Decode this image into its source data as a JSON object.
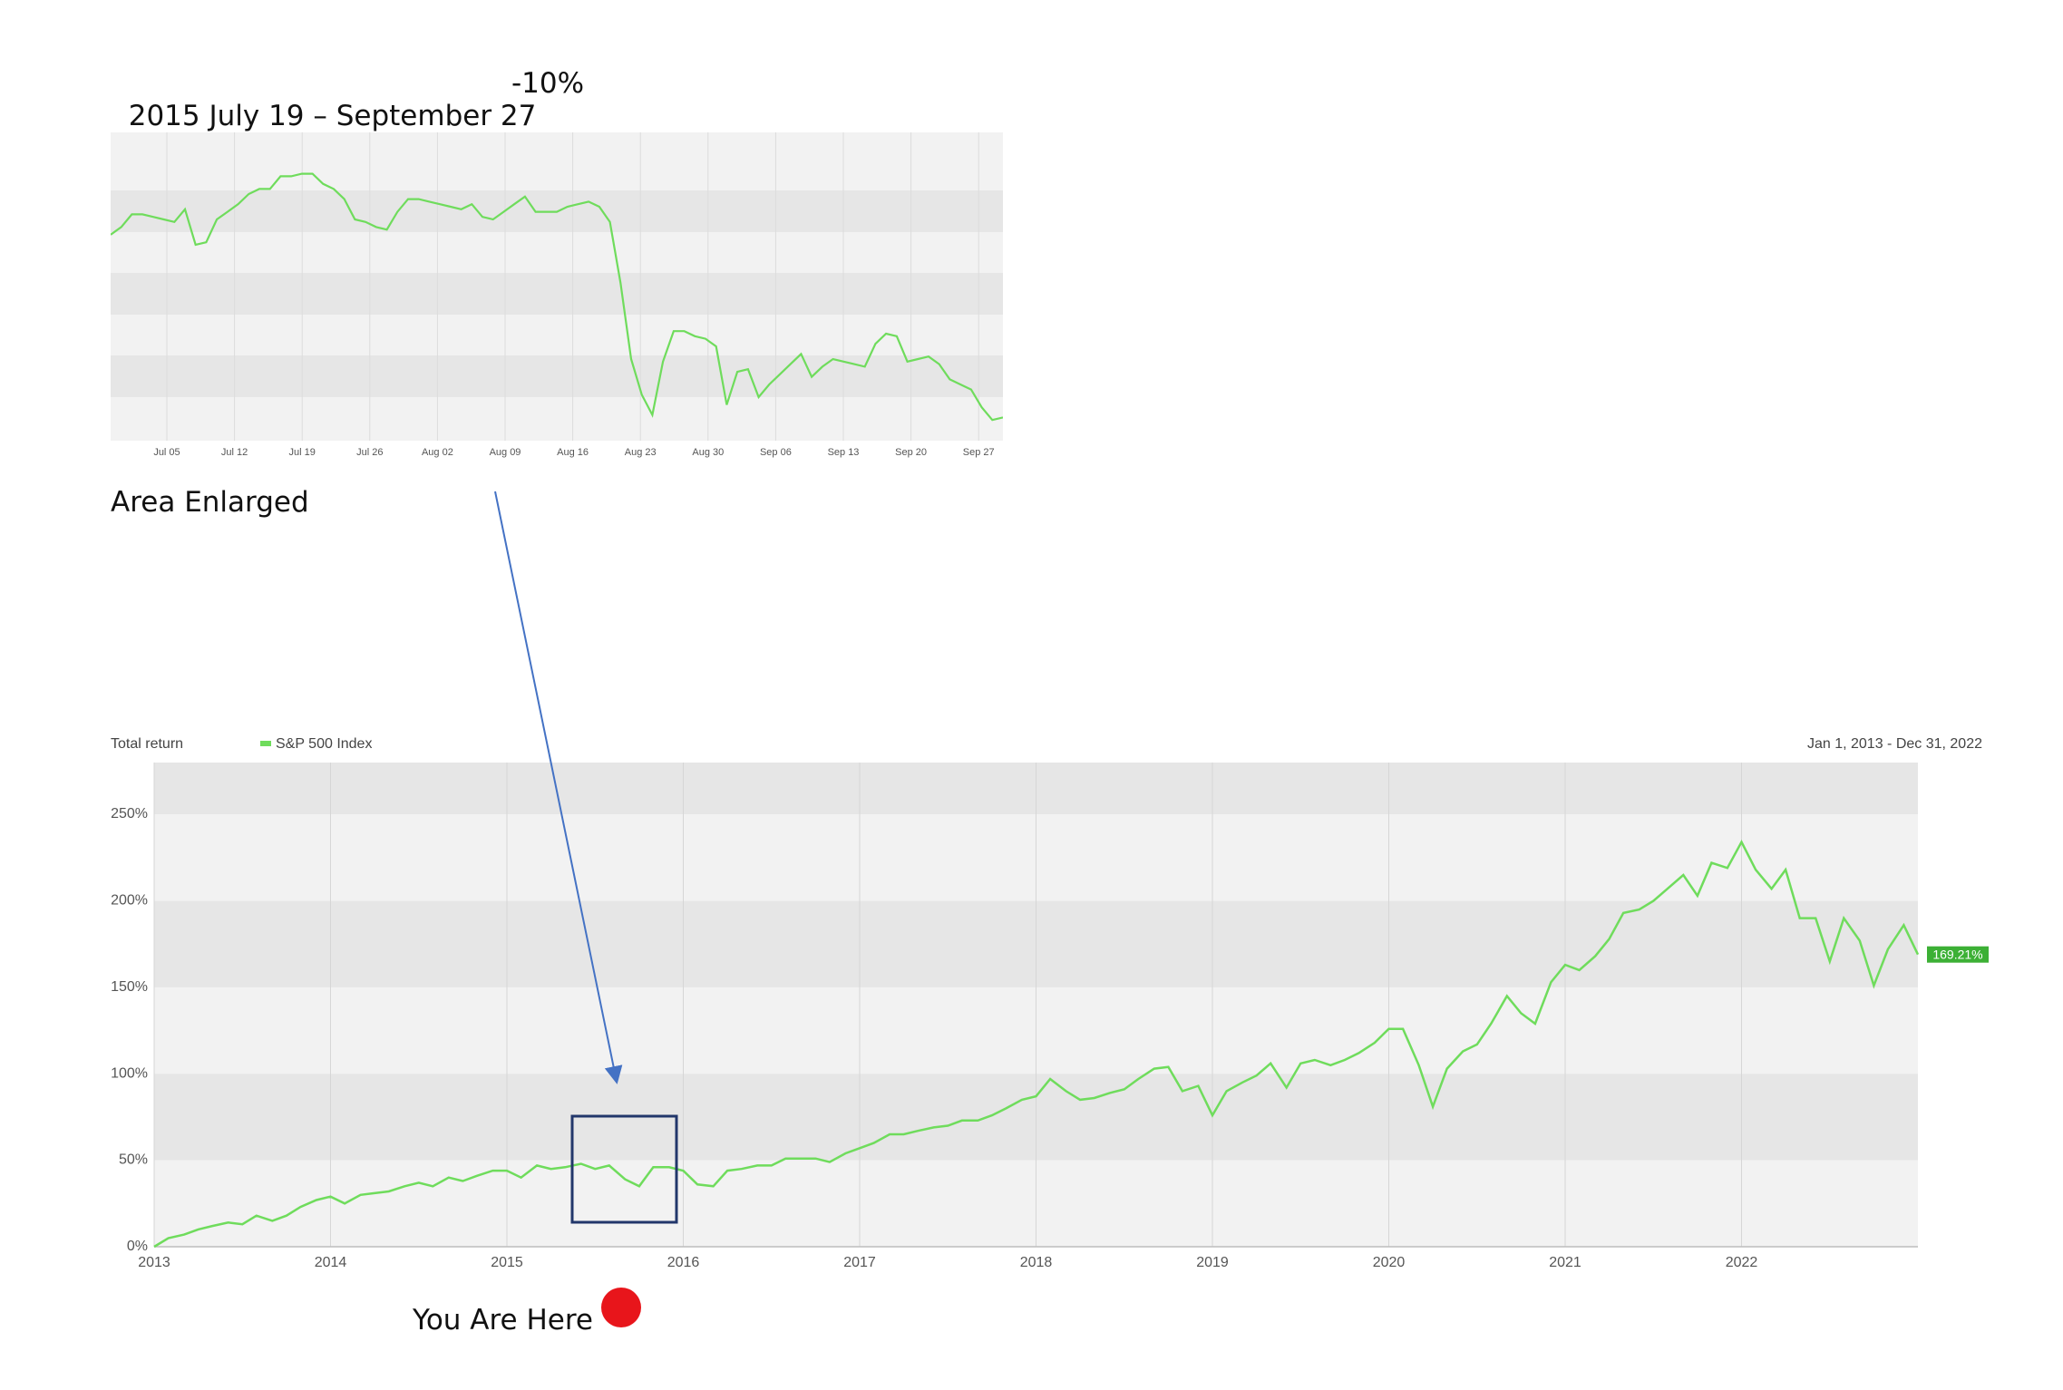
{
  "heading": {
    "range": "2015 July 19 – September 27",
    "change": "-10%"
  },
  "annotations": {
    "enlarged": "Area Enlarged",
    "you_are_here": "You Are Here"
  },
  "colors": {
    "line": "#6fdc5c",
    "band_light": "#f2f2f2",
    "band_dark": "#e6e6e6",
    "arrow": "#4472c4",
    "box": "#22376b",
    "marker": "#e8151b",
    "badge": "#3cb035"
  },
  "chart_data": [
    {
      "type": "line",
      "title": "",
      "xlabel": "",
      "ylabel": "",
      "x_ticks": [
        "Jul 05",
        "Jul 12",
        "Jul 19",
        "Jul 26",
        "Aug 02",
        "Aug 09",
        "Aug 16",
        "Aug 23",
        "Aug 30",
        "Sep 06",
        "Sep 13",
        "Sep 20",
        "Sep 27"
      ],
      "series": [
        {
          "values": [
            69,
            72,
            77,
            77,
            76,
            75,
            74,
            79,
            65,
            66,
            75,
            78,
            81,
            85,
            87,
            87,
            92,
            92,
            93,
            93,
            89,
            87,
            83,
            75,
            74,
            72,
            71,
            78,
            83,
            83,
            82,
            81,
            80,
            79,
            81,
            76,
            75,
            78,
            81,
            84,
            78,
            78,
            78,
            80,
            81,
            82,
            80,
            74,
            50,
            20,
            6,
            -2,
            19,
            31,
            31,
            29,
            28,
            25,
            2,
            15,
            16,
            5,
            10,
            14,
            18,
            22,
            13,
            17,
            20,
            19,
            18,
            17,
            26,
            30,
            29,
            19,
            20,
            21,
            18,
            12,
            10,
            8,
            1,
            -4,
            -3
          ]
        }
      ]
    },
    {
      "type": "line",
      "title": "",
      "legend": [
        "S&P 500 Index"
      ],
      "top_left_label": "Total return",
      "date_range": "Jan 1, 2013 - Dec 31, 2022",
      "x_ticks": [
        "2013",
        "2014",
        "2015",
        "2016",
        "2017",
        "2018",
        "2019",
        "2020",
        "2021",
        "2022"
      ],
      "y_ticks": [
        "0%",
        "50%",
        "100%",
        "150%",
        "200%",
        "250%"
      ],
      "ylim": [
        0,
        280
      ],
      "last_value_label": "169.21%",
      "series": [
        {
          "name": "S&P 500 Index",
          "x": [
            2013.0,
            2013.08,
            2013.17,
            2013.25,
            2013.33,
            2013.42,
            2013.5,
            2013.58,
            2013.67,
            2013.75,
            2013.83,
            2013.92,
            2014.0,
            2014.08,
            2014.17,
            2014.25,
            2014.33,
            2014.42,
            2014.5,
            2014.58,
            2014.67,
            2014.75,
            2014.83,
            2014.92,
            2015.0,
            2015.08,
            2015.17,
            2015.25,
            2015.33,
            2015.42,
            2015.5,
            2015.58,
            2015.67,
            2015.75,
            2015.83,
            2015.92,
            2016.0,
            2016.08,
            2016.17,
            2016.25,
            2016.33,
            2016.42,
            2016.5,
            2016.58,
            2016.67,
            2016.75,
            2016.83,
            2016.92,
            2017.0,
            2017.08,
            2017.17,
            2017.25,
            2017.33,
            2017.42,
            2017.5,
            2017.58,
            2017.67,
            2017.75,
            2017.83,
            2017.92,
            2018.0,
            2018.08,
            2018.17,
            2018.25,
            2018.33,
            2018.42,
            2018.5,
            2018.58,
            2018.67,
            2018.75,
            2018.83,
            2018.92,
            2019.0,
            2019.08,
            2019.17,
            2019.25,
            2019.33,
            2019.42,
            2019.5,
            2019.58,
            2019.67,
            2019.75,
            2019.83,
            2019.92,
            2020.0,
            2020.08,
            2020.17,
            2020.25,
            2020.33,
            2020.42,
            2020.5,
            2020.58,
            2020.67,
            2020.75,
            2020.83,
            2020.92,
            2021.0,
            2021.08,
            2021.17,
            2021.25,
            2021.33,
            2021.42,
            2021.5,
            2021.58,
            2021.67,
            2021.75,
            2021.83,
            2021.92,
            2022.0,
            2022.08,
            2022.17,
            2022.25,
            2022.33,
            2022.42,
            2022.5,
            2022.58,
            2022.67,
            2022.75,
            2022.83,
            2022.92,
            2023.0
          ],
          "values": [
            0,
            5,
            7,
            10,
            12,
            14,
            13,
            18,
            15,
            18,
            23,
            27,
            29,
            25,
            30,
            31,
            32,
            35,
            37,
            35,
            40,
            38,
            41,
            44,
            44,
            40,
            47,
            45,
            46,
            48,
            45,
            47,
            39,
            35,
            46,
            46,
            44,
            36,
            35,
            44,
            45,
            47,
            47,
            51,
            51,
            51,
            49,
            54,
            57,
            60,
            65,
            65,
            67,
            69,
            70,
            73,
            73,
            76,
            80,
            85,
            87,
            97,
            90,
            85,
            86,
            89,
            91,
            97,
            103,
            104,
            90,
            93,
            76,
            90,
            95,
            99,
            106,
            92,
            106,
            108,
            105,
            108,
            112,
            118,
            126,
            126,
            105,
            81,
            103,
            113,
            117,
            129,
            145,
            135,
            129,
            153,
            163,
            160,
            168,
            178,
            193,
            195,
            200,
            207,
            215,
            203,
            222,
            219,
            234,
            218,
            207,
            218,
            190,
            190,
            165,
            190,
            177,
            151,
            172,
            186,
            169
          ]
        }
      ]
    }
  ]
}
